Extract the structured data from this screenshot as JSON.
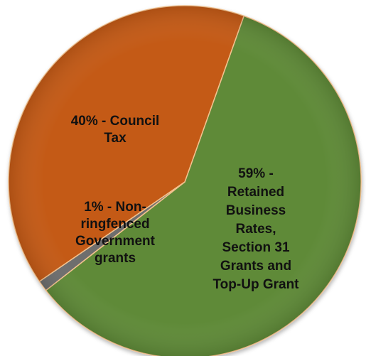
{
  "chart_data": {
    "type": "pie",
    "title": "",
    "slices": [
      {
        "label": "Retained Business Rates, Section 31 Grants and Top-Up Grant",
        "value": 59,
        "label_lines": [
          "59% -",
          "Retained",
          "Business",
          "Rates,",
          "Section 31",
          "Grants and",
          "Top-Up Grant"
        ],
        "color": "#5e8a37"
      },
      {
        "label": "Non-ringfenced Government grants",
        "value": 1,
        "label_lines": [
          "1% - Non-",
          "ringfenced",
          "Government",
          "grants"
        ],
        "color": "#6e6e6e"
      },
      {
        "label": "Council Tax",
        "value": 40,
        "label_lines": [
          "40% - Council",
          "Tax"
        ],
        "color": "#c45a12"
      }
    ]
  }
}
